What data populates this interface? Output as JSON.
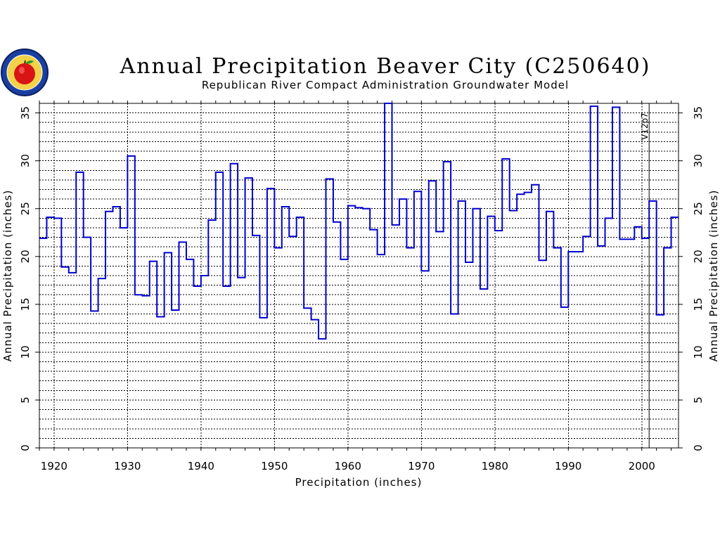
{
  "chart_data": {
    "type": "line",
    "step": true,
    "title": "Annual Precipitation Beaver City (C250640)",
    "subtitle": "Republican River Compact Administration Groundwater Model",
    "xlabel": "Precipitation (inches)",
    "ylabel": "Annual Precipitation (inches)",
    "xlim": [
      1918,
      2005
    ],
    "ylim": [
      0,
      36
    ],
    "x_ticks": [
      1920,
      1930,
      1940,
      1950,
      1960,
      1970,
      1980,
      1990,
      2000
    ],
    "y_ticks": [
      0,
      5,
      10,
      15,
      20,
      25,
      30,
      35
    ],
    "y_minor_step": 1,
    "grid": true,
    "series_color": "#0000cc",
    "annotation": {
      "text": "V12p7",
      "x": 2001
    },
    "years": [
      1918,
      1919,
      1920,
      1921,
      1922,
      1923,
      1924,
      1925,
      1926,
      1927,
      1928,
      1929,
      1930,
      1931,
      1932,
      1933,
      1934,
      1935,
      1936,
      1937,
      1938,
      1939,
      1940,
      1941,
      1942,
      1943,
      1944,
      1945,
      1946,
      1947,
      1948,
      1949,
      1950,
      1951,
      1952,
      1953,
      1954,
      1955,
      1956,
      1957,
      1958,
      1959,
      1960,
      1961,
      1962,
      1963,
      1964,
      1965,
      1966,
      1967,
      1968,
      1969,
      1970,
      1971,
      1972,
      1973,
      1974,
      1975,
      1976,
      1977,
      1978,
      1979,
      1980,
      1981,
      1982,
      1983,
      1984,
      1985,
      1986,
      1987,
      1988,
      1989,
      1990,
      1991,
      1992,
      1993,
      1994,
      1995,
      1996,
      1997,
      1998,
      1999,
      2000,
      2001,
      2002,
      2003,
      2004
    ],
    "values": [
      21.9,
      24.1,
      24.0,
      18.9,
      18.3,
      28.8,
      22.0,
      14.3,
      17.7,
      24.7,
      25.2,
      23.0,
      30.5,
      16.0,
      15.9,
      19.5,
      13.7,
      20.4,
      14.4,
      21.5,
      19.7,
      16.9,
      18.0,
      23.8,
      28.8,
      16.9,
      29.7,
      17.8,
      28.2,
      22.2,
      13.6,
      27.1,
      20.9,
      25.2,
      22.1,
      24.1,
      14.6,
      13.4,
      11.4,
      28.1,
      23.6,
      19.7,
      25.3,
      25.1,
      25.0,
      22.8,
      20.2,
      36.0,
      23.3,
      26.0,
      20.9,
      26.8,
      18.5,
      27.9,
      22.6,
      29.9,
      14.0,
      25.8,
      19.4,
      25.0,
      16.6,
      24.2,
      22.7,
      30.2,
      24.8,
      26.5,
      26.7,
      27.5,
      19.6,
      24.7,
      20.9,
      14.7,
      20.5,
      20.5,
      22.1,
      35.7,
      21.1,
      24.0,
      35.6,
      21.8,
      21.8,
      23.1,
      21.9,
      25.8,
      13.9,
      20.9,
      24.1
    ]
  }
}
